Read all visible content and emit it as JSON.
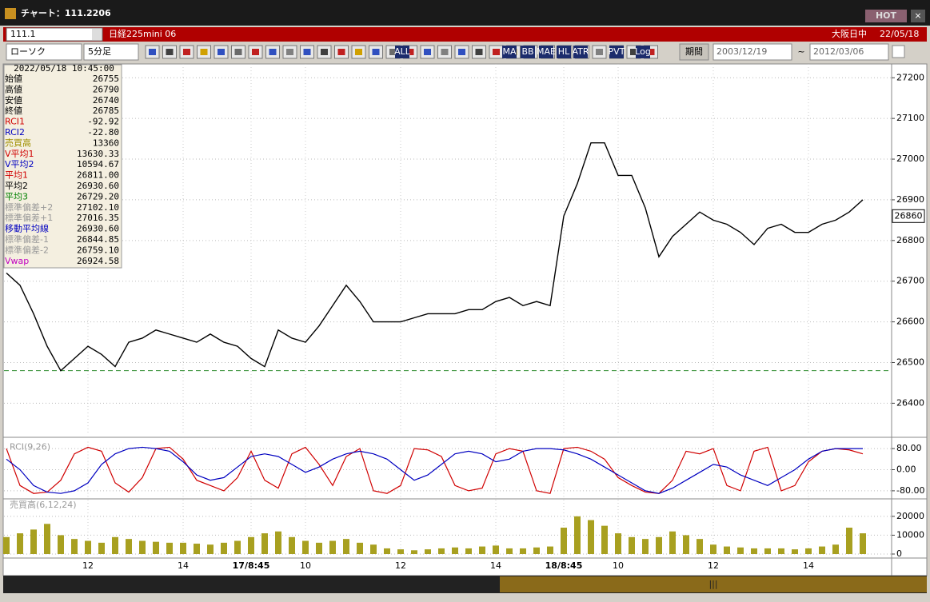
{
  "window": {
    "title": "チャート：111.2206",
    "hot": "HOT"
  },
  "symbol_bar": {
    "code": "111.1",
    "name": "日経225mini 06",
    "market": "大阪日中",
    "date": "22/05/18"
  },
  "toolbar": {
    "chart_type": "ローソク",
    "interval": "5分足",
    "icon_labels": [
      "ALL",
      "MA",
      "BB",
      "MAE",
      "HL",
      "ATR",
      "PVT",
      "Log"
    ],
    "period_label": "期間",
    "from": "2003/12/19",
    "tilde": "~",
    "to": "2012/03/06"
  },
  "info_panel": {
    "datetime": "2022/05/18 10:45:00",
    "rows": [
      {
        "label": "始値",
        "value": "26755",
        "color": "#000"
      },
      {
        "label": "高値",
        "value": "26790",
        "color": "#000"
      },
      {
        "label": "安値",
        "value": "26740",
        "color": "#000"
      },
      {
        "label": "終値",
        "value": "26785",
        "color": "#000"
      },
      {
        "label": "RCI1",
        "value": "-92.92",
        "color": "#d00000"
      },
      {
        "label": "RCI2",
        "value": "-22.80",
        "color": "#0000c0"
      },
      {
        "label": "売買高",
        "value": "13360",
        "color": "#a09000"
      },
      {
        "label": "V平均1",
        "value": "13630.33",
        "color": "#d00000"
      },
      {
        "label": "V平均2",
        "value": "10594.67",
        "color": "#0000c0"
      },
      {
        "label": "平均1",
        "value": "26811.00",
        "color": "#d00000"
      },
      {
        "label": "平均2",
        "value": "26930.60",
        "color": "#000"
      },
      {
        "label": "平均3",
        "value": "26729.20",
        "color": "#008000"
      },
      {
        "label": "標準偏差+2",
        "value": "27102.10",
        "color": "#999"
      },
      {
        "label": "標準偏差+1",
        "value": "27016.35",
        "color": "#999"
      },
      {
        "label": "移動平均線",
        "value": "26930.60",
        "color": "#0000c0"
      },
      {
        "label": "標準偏差-1",
        "value": "26844.85",
        "color": "#999"
      },
      {
        "label": "標準偏差-2",
        "value": "26759.10",
        "color": "#999"
      },
      {
        "label": "Vwap",
        "value": "26924.58",
        "color": "#c000c0"
      }
    ]
  },
  "chart_data": [
    {
      "type": "line",
      "ylim": [
        26330,
        27230
      ],
      "yticks": [
        26400,
        26500,
        26600,
        26700,
        26800,
        26900,
        27000,
        27100,
        27200
      ],
      "grid": true,
      "reference_line": 26480,
      "last_price": 26860,
      "series": [
        {
          "color": "#000",
          "values": [
            26720,
            26690,
            26620,
            26540,
            26480,
            26510,
            26540,
            26520,
            26490,
            26550,
            26560,
            26580,
            26570,
            26560,
            26550,
            26570,
            26550,
            26540,
            26510,
            26490,
            26580,
            26560,
            26550,
            26590,
            26640,
            26690,
            26650,
            26600,
            26600,
            26600,
            26610,
            26620,
            26620,
            26620,
            26630,
            26630,
            26650,
            26660,
            26640,
            26650,
            26640,
            26860,
            26940,
            27040,
            27040,
            26960,
            26960,
            26880,
            26760,
            26810,
            26840,
            26870,
            26850,
            26840,
            26820,
            26790,
            26830,
            26840,
            26820,
            26820,
            26840,
            26850,
            26870,
            26900
          ]
        }
      ]
    },
    {
      "type": "line",
      "title": "RCI(9,26)",
      "ylim": [
        -100,
        100
      ],
      "yticks": [
        {
          "value": 80,
          "label": "80.00"
        },
        {
          "value": 0,
          "label": "0.00"
        },
        {
          "value": -80,
          "label": "-80.00"
        }
      ],
      "grid": true,
      "series": [
        {
          "color": "#d00000",
          "values": [
            80,
            -60,
            -90,
            -85,
            -40,
            60,
            85,
            70,
            -50,
            -85,
            -30,
            80,
            85,
            40,
            -40,
            -60,
            -80,
            -30,
            70,
            -40,
            -70,
            60,
            85,
            20,
            -60,
            50,
            80,
            -80,
            -90,
            -60,
            80,
            75,
            50,
            -60,
            -80,
            -70,
            60,
            80,
            70,
            -80,
            -90,
            80,
            85,
            70,
            40,
            -30,
            -60,
            -85,
            -90,
            -40,
            70,
            60,
            80,
            -60,
            -80,
            70,
            85,
            -80,
            -60,
            30,
            70,
            80,
            75,
            60
          ]
        },
        {
          "color": "#0000c0",
          "values": [
            40,
            0,
            -60,
            -85,
            -90,
            -80,
            -50,
            20,
            60,
            80,
            85,
            80,
            70,
            30,
            -20,
            -40,
            -30,
            10,
            50,
            60,
            50,
            20,
            -10,
            10,
            40,
            60,
            70,
            60,
            40,
            0,
            -40,
            -20,
            20,
            60,
            70,
            60,
            30,
            40,
            70,
            80,
            80,
            75,
            60,
            40,
            10,
            -20,
            -50,
            -80,
            -90,
            -70,
            -40,
            -10,
            20,
            10,
            -20,
            -40,
            -60,
            -30,
            0,
            40,
            70,
            80,
            80,
            80
          ]
        }
      ]
    },
    {
      "type": "bar",
      "title": "売買高(6,12,24)",
      "ylim": [
        0,
        28000
      ],
      "yticks": [
        0,
        10000,
        20000
      ],
      "grid": true,
      "color": "#a8a020",
      "categories": [
        null,
        null,
        null,
        null,
        null,
        null,
        "12",
        null,
        null,
        null,
        null,
        null,
        null,
        "14",
        null,
        null,
        null,
        null,
        "17/8:45",
        null,
        null,
        null,
        "10",
        null,
        null,
        null,
        null,
        null,
        null,
        "12",
        null,
        null,
        null,
        null,
        null,
        null,
        "14",
        null,
        null,
        null,
        null,
        "18/8:45",
        null,
        null,
        null,
        "10",
        null,
        null,
        null,
        null,
        null,
        null,
        "12",
        null,
        null,
        null,
        null,
        null,
        null,
        "14",
        null,
        null,
        null,
        null
      ],
      "values": [
        9000,
        11000,
        13000,
        16000,
        10000,
        8000,
        7000,
        6000,
        9000,
        8000,
        7000,
        6500,
        6000,
        6000,
        5500,
        5000,
        6000,
        7000,
        9000,
        11000,
        12000,
        9000,
        7000,
        6000,
        7000,
        8000,
        6000,
        5000,
        3000,
        2500,
        2000,
        2500,
        3000,
        3500,
        3000,
        4000,
        4500,
        3000,
        3000,
        3500,
        4000,
        14000,
        20000,
        18000,
        15000,
        11000,
        9000,
        8000,
        9000,
        12000,
        10000,
        8000,
        5000,
        4000,
        3500,
        3000,
        3000,
        3000,
        2500,
        3000,
        4000,
        5000,
        14000,
        11000
      ]
    }
  ]
}
